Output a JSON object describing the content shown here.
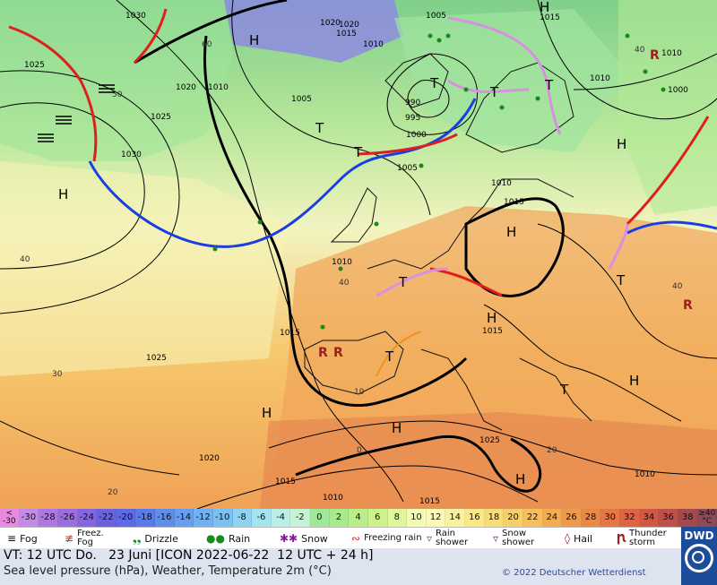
{
  "map": {
    "highs_lows": [
      "H",
      "H",
      "H",
      "H",
      "H",
      "H",
      "H",
      "H",
      "H",
      "H",
      "T",
      "T",
      "T",
      "T",
      "T",
      "T",
      "T",
      "T",
      "T"
    ],
    "isobar_labels": [
      "1030",
      "1025",
      "1020",
      "1015",
      "1010",
      "1005",
      "1000",
      "995",
      "990",
      "1025",
      "1020",
      "1010",
      "1030",
      "1025",
      "1020",
      "1015",
      "1010",
      "1005",
      "1000",
      "1015",
      "1010",
      "1005",
      "1010",
      "1010",
      "1015",
      "1015",
      "1020",
      "1025",
      "1015",
      "1010",
      "1010",
      "1015"
    ],
    "temperature_labels": [
      "50",
      "40",
      "40",
      "30",
      "20",
      "60",
      "40",
      "10",
      "0",
      "20",
      "40"
    ],
    "thunder_symbol": "R"
  },
  "scale": {
    "values": [
      "< -30",
      "-30",
      "-28",
      "-26",
      "-24",
      "-22",
      "-20",
      "-18",
      "-16",
      "-14",
      "-12",
      "-10",
      "-8",
      "-6",
      "-4",
      "-2",
      "0",
      "2",
      "4",
      "6",
      "8",
      "10",
      "12",
      "14",
      "16",
      "18",
      "20",
      "22",
      "24",
      "26",
      "28",
      "30",
      "32",
      "34",
      "36",
      "38",
      "≥40 °C"
    ],
    "colors": [
      "#e98ae0",
      "#c28be6",
      "#ad78e0",
      "#9b6ede",
      "#8466e0",
      "#6b62dc",
      "#5d69e6",
      "#5a7ae8",
      "#5f8ee8",
      "#679fec",
      "#72b0f0",
      "#7cc1f2",
      "#8fd2f2",
      "#a5e3ee",
      "#b9efe6",
      "#c6f3d6",
      "#9fe89a",
      "#a9ea8d",
      "#bbee89",
      "#cdf28c",
      "#dff69a",
      "#f2fbb7",
      "#fbf8b8",
      "#fbf2a0",
      "#fbe888",
      "#f9dc7a",
      "#f8cd6c",
      "#f6be5e",
      "#f2ac52",
      "#ee9a4c",
      "#ea8848",
      "#e57646",
      "#de6444",
      "#d15845",
      "#bd5048",
      "#a24a4e",
      "#8d4a58"
    ]
  },
  "legend": {
    "fog": "Fog",
    "freez_fog": "Freez. Fog",
    "drizzle": "Drizzle",
    "rain": "Rain",
    "snow": "Snow",
    "freezing_rain": "Freezing rain",
    "rain_shower": "Rain shower",
    "snow_shower": "Snow shower",
    "hail": "Hail",
    "thunder_storm": "Thunder storm"
  },
  "info": {
    "valid_time": "VT: 12 UTC Do.   23 Juni [ICON 2022-06-22  12 UTC + 24 h]",
    "subtitle": "Sea level pressure (hPa), Weather, Temperature 2m (°C)",
    "copyright": "© 2022 Deutscher Wetterdienst",
    "logo_text": "DWD"
  },
  "colors": {
    "cold_front": "#1a3ee0",
    "warm_front": "#e01e1e",
    "occlusion": "#d890e0",
    "isobar": "#000000"
  }
}
